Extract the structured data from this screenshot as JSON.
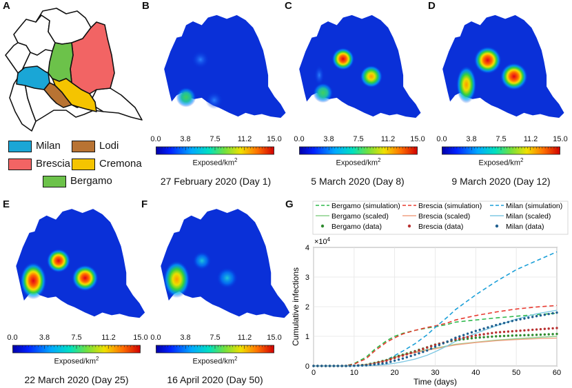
{
  "panel_labels": {
    "a": "A",
    "b": "B",
    "c": "C",
    "d": "D",
    "e": "E",
    "f": "F",
    "g": "G"
  },
  "map_legend": [
    {
      "name": "Milan",
      "color": "#1aa6d6"
    },
    {
      "name": "Lodi",
      "color": "#b87333"
    },
    {
      "name": "Brescia",
      "color": "#f26464"
    },
    {
      "name": "Cremona",
      "color": "#f5c400"
    },
    {
      "name": "Bergamo",
      "color": "#6cc24a"
    }
  ],
  "colorbar": {
    "title": "Exposed/km",
    "title_sup": "2",
    "ticks": [
      "0.0",
      "3.8",
      "7.5",
      "11.2",
      "15.0"
    ]
  },
  "snapshots": [
    {
      "caption": "27 February 2020 (Day 1)"
    },
    {
      "caption": "5 March 2020 (Day 8)"
    },
    {
      "caption": "9 March 2020 (Day 12)"
    },
    {
      "caption": "22 March 2020 (Day 25)"
    },
    {
      "caption": "16 April 2020 (Day 50)"
    }
  ],
  "chart_data": {
    "type": "line",
    "xlabel": "Time (days)",
    "ylabel": "Cumulative infections",
    "y_multiplier": "×10",
    "y_multiplier_exp": "4",
    "xlim": [
      0,
      60
    ],
    "ylim": [
      0,
      40000
    ],
    "xticks": [
      "0",
      "10",
      "20",
      "30",
      "40",
      "50",
      "60"
    ],
    "yticks": [
      "0",
      "1",
      "2",
      "3",
      "4"
    ],
    "legend": [
      "Bergamo (simulation)",
      "Brescia (simulation)",
      "Milan (simulation)",
      "Bergamo (scaled)",
      "Brescia (scaled)",
      "Milan (scaled)",
      "Bergamo (data)",
      "Brescia (data)",
      "Milan (data)"
    ],
    "colors": {
      "Bergamo": "#2db84a",
      "Brescia": "#e8392f",
      "Milan": "#1a9fd8",
      "Bergamo_scaled": "#8ad08a",
      "Brescia_scaled": "#f0a080",
      "Milan_scaled": "#7ec8e3",
      "Bergamo_data": "#2e8b2e",
      "Brescia_data": "#b83030",
      "Milan_data": "#1f5f8f"
    },
    "x": [
      0,
      5,
      8,
      10,
      13,
      15,
      18,
      20,
      22,
      25,
      28,
      30,
      33,
      35,
      40,
      45,
      50,
      55,
      60
    ],
    "series": [
      {
        "name": "Bergamo (simulation)",
        "values": [
          0,
          0,
          100,
          800,
          3000,
          5500,
          8500,
          10000,
          11000,
          12000,
          12800,
          13200,
          14000,
          14800,
          15500,
          16200,
          16800,
          17300,
          17800
        ]
      },
      {
        "name": "Brescia (simulation)",
        "values": [
          0,
          0,
          80,
          600,
          2500,
          5000,
          8000,
          9500,
          10800,
          12000,
          13000,
          13500,
          14500,
          15500,
          17000,
          18200,
          19200,
          19900,
          20400
        ]
      },
      {
        "name": "Milan (simulation)",
        "values": [
          0,
          0,
          0,
          100,
          500,
          1000,
          2000,
          3500,
          5000,
          7500,
          10500,
          13000,
          16500,
          19000,
          24000,
          28500,
          32500,
          35500,
          38500
        ]
      },
      {
        "name": "Bergamo (scaled)",
        "values": [
          0,
          0,
          0,
          100,
          500,
          1000,
          2000,
          3000,
          3800,
          4700,
          5500,
          6000,
          6800,
          7300,
          8000,
          8700,
          9200,
          9600,
          10000
        ]
      },
      {
        "name": "Brescia (scaled)",
        "values": [
          0,
          0,
          0,
          80,
          400,
          900,
          1800,
          2800,
          3600,
          4500,
          5300,
          5800,
          6600,
          7100,
          7900,
          8500,
          8900,
          9200,
          9400
        ]
      },
      {
        "name": "Milan (scaled)",
        "values": [
          0,
          0,
          0,
          0,
          100,
          200,
          500,
          900,
          1400,
          2300,
          3600,
          4800,
          6800,
          8300,
          11000,
          13500,
          15800,
          17600,
          18800
        ]
      },
      {
        "name": "Bergamo (data)",
        "values": [
          0,
          0,
          0,
          100,
          400,
          1000,
          2000,
          3000,
          3800,
          5000,
          6300,
          7200,
          8100,
          8700,
          9500,
          10000,
          10300,
          10500,
          10800
        ]
      },
      {
        "name": "Brescia (data)",
        "values": [
          0,
          0,
          0,
          80,
          300,
          800,
          1800,
          2700,
          3500,
          4800,
          6200,
          7100,
          8200,
          9000,
          10300,
          11300,
          11800,
          12300,
          12800
        ]
      },
      {
        "name": "Milan (data)",
        "values": [
          0,
          0,
          0,
          50,
          200,
          500,
          1000,
          1800,
          2500,
          3800,
          5200,
          6500,
          8200,
          9500,
          11800,
          13800,
          15500,
          16800,
          18000
        ]
      }
    ]
  }
}
